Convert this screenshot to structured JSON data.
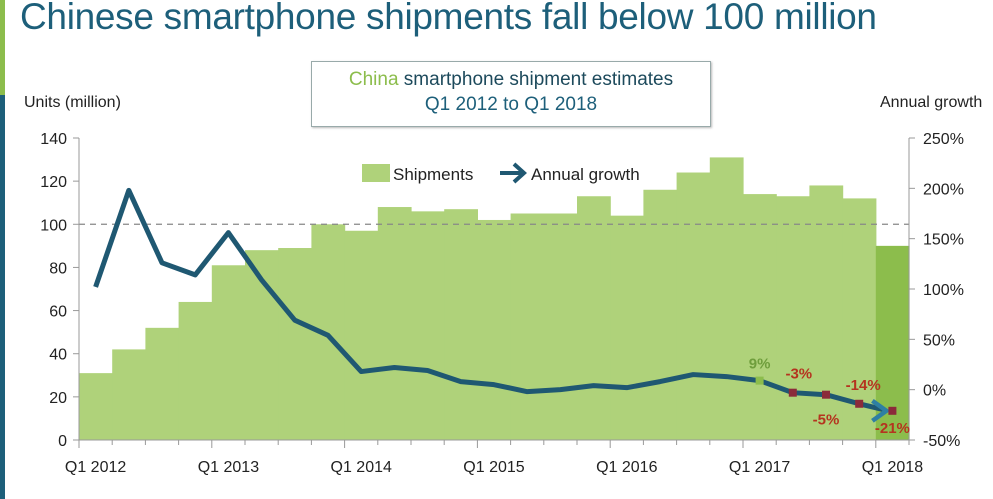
{
  "title": "Chinese smartphone shipments fall below 100 million",
  "chart_data": {
    "type": "bar+line",
    "title": "China smartphone shipment estimates",
    "title_highlight": "China",
    "title_rest": " smartphone shipment estimates",
    "subtitle": "Q1 2012 to Q1 2018",
    "ylabel": "Units (million)",
    "y2label": "Annual growth",
    "ylim": [
      0,
      140
    ],
    "y2lim": [
      -50,
      250
    ],
    "yticks": [
      "0",
      "20",
      "40",
      "60",
      "80",
      "100",
      "120",
      "140"
    ],
    "y2ticks": [
      "-50%",
      "0%",
      "50%",
      "100%",
      "150%",
      "200%",
      "250%"
    ],
    "xtick_labels": [
      "Q1 2012",
      "Q1 2013",
      "Q1 2014",
      "Q1 2015",
      "Q1 2016",
      "Q1 2017",
      "Q1 2018"
    ],
    "reference_line": 100,
    "legend": {
      "placement": "top-center",
      "items": [
        "Shipments",
        "Annual growth"
      ]
    },
    "categories": [
      "Q1 2012",
      "Q2 2012",
      "Q3 2012",
      "Q4 2012",
      "Q1 2013",
      "Q2 2013",
      "Q3 2013",
      "Q4 2013",
      "Q1 2014",
      "Q2 2014",
      "Q3 2014",
      "Q4 2014",
      "Q1 2015",
      "Q2 2015",
      "Q3 2015",
      "Q4 2015",
      "Q1 2016",
      "Q2 2016",
      "Q3 2016",
      "Q4 2016",
      "Q1 2017",
      "Q2 2017",
      "Q3 2017",
      "Q4 2017",
      "Q1 2018"
    ],
    "series": [
      {
        "name": "Shipments",
        "axis": "left",
        "type": "bar",
        "values": [
          31,
          42,
          52,
          64,
          81,
          88,
          89,
          100,
          97,
          108,
          106,
          107,
          102,
          105,
          105,
          113,
          104,
          116,
          124,
          131,
          114,
          113,
          118,
          112,
          90
        ]
      },
      {
        "name": "Annual growth",
        "axis": "right",
        "type": "line",
        "values": [
          102,
          198,
          126,
          114,
          156,
          109,
          69,
          54,
          18,
          22,
          19,
          8,
          5,
          -2,
          0,
          4,
          2,
          8,
          15,
          13,
          9,
          -3,
          -5,
          -14,
          -21
        ]
      }
    ],
    "annotations": [
      {
        "index": 20,
        "text": "9%",
        "color": "#6f9e3c"
      },
      {
        "index": 21,
        "text": "-3%",
        "color": "#b5341f"
      },
      {
        "index": 22,
        "text": "-5%",
        "color": "#b5341f"
      },
      {
        "index": 23,
        "text": "-14%",
        "color": "#b5341f"
      },
      {
        "index": 24,
        "text": "-21%",
        "color": "#b5341f"
      }
    ],
    "colors": {
      "bar": "#afd27a",
      "bar_highlight": "#8cbd4c",
      "line": "#1f5872",
      "marker": "#8b2b3a",
      "marker_first": "#8cbd4c"
    }
  }
}
